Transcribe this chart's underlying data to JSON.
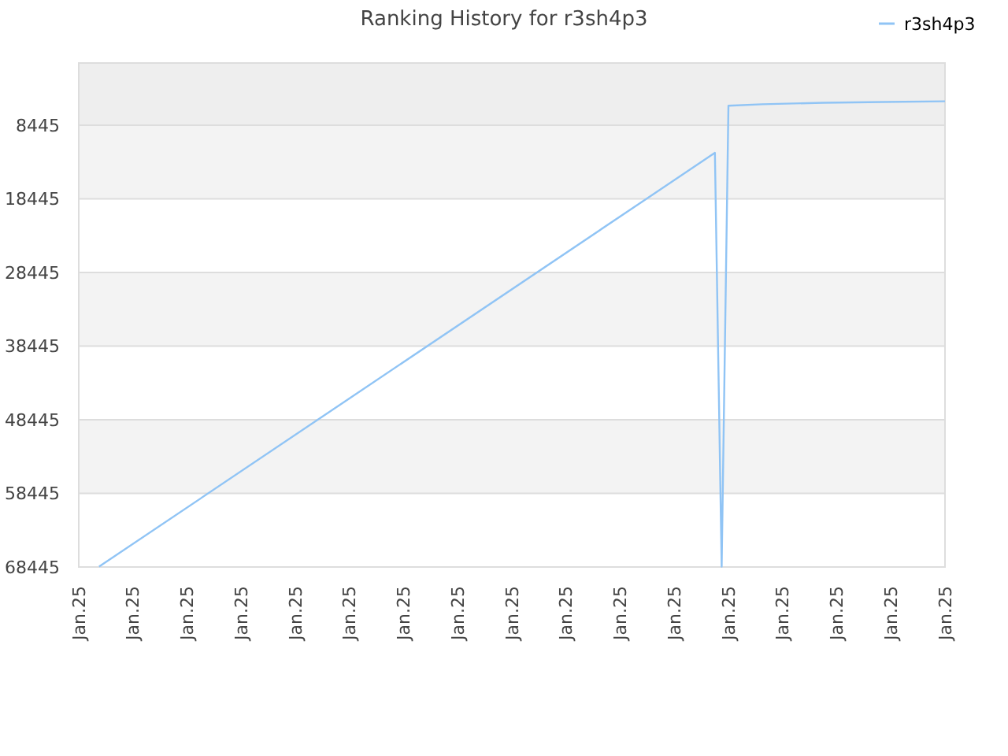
{
  "chart_data": {
    "type": "line",
    "title": "Ranking History for r3sh4p3",
    "categories": [
      "Jan.25",
      null,
      null,
      null,
      null,
      null,
      null,
      null,
      "Jan.25",
      null,
      null,
      null,
      null,
      null,
      null,
      null,
      "Jan.25",
      null,
      null,
      null,
      null,
      null,
      null,
      null,
      "Jan.25",
      null,
      null,
      null,
      null,
      null,
      null,
      null,
      "Jan.25",
      null,
      null,
      null,
      null,
      null,
      null,
      null,
      "Jan.25",
      null,
      null,
      null,
      null,
      null,
      null,
      null,
      "Jan.25",
      null,
      null,
      null,
      null,
      null,
      null,
      null,
      "Jan.25",
      null,
      null,
      null,
      null,
      null,
      null,
      null,
      "Jan.25",
      null,
      null,
      null,
      null,
      null,
      null,
      null,
      "Jan.25",
      null,
      null,
      null,
      null,
      null,
      null,
      null,
      "Jan.25",
      null,
      null,
      null,
      null,
      null,
      null,
      null,
      "Jan.25",
      null,
      null,
      null,
      null,
      null,
      null,
      null,
      "Jan.25",
      null,
      null,
      null,
      null,
      null,
      null,
      null,
      "Jan.25",
      null,
      null,
      null,
      null,
      null,
      null,
      null,
      "Jan.25",
      null,
      null,
      null,
      null,
      null,
      null,
      null,
      "Jan.25",
      null,
      null,
      null,
      null,
      null,
      null,
      null,
      "Jan.25"
    ],
    "ylim": [
      68445,
      1
    ],
    "yticks": [
      8445,
      18445,
      28445,
      38445,
      48445,
      58445,
      68445
    ],
    "series": [
      {
        "name": "r3sh4p3",
        "color": "#90c4f5",
        "values": [
          null,
          null,
          null,
          68400,
          null,
          null,
          null,
          null,
          null,
          null,
          null,
          null,
          null,
          null,
          null,
          null,
          null,
          null,
          null,
          null,
          null,
          null,
          null,
          null,
          null,
          null,
          null,
          null,
          null,
          null,
          null,
          null,
          null,
          null,
          null,
          null,
          null,
          null,
          null,
          null,
          null,
          null,
          null,
          null,
          null,
          null,
          null,
          null,
          null,
          null,
          null,
          null,
          null,
          null,
          null,
          null,
          null,
          null,
          null,
          null,
          null,
          null,
          null,
          null,
          null,
          null,
          null,
          null,
          null,
          null,
          null,
          null,
          null,
          null,
          null,
          null,
          null,
          null,
          null,
          null,
          null,
          null,
          null,
          null,
          null,
          null,
          null,
          null,
          null,
          null,
          null,
          null,
          null,
          null,
          12200,
          68400,
          5800,
          null,
          null,
          null,
          null,
          5600,
          null,
          null,
          null,
          null,
          null,
          null,
          null,
          null,
          5400,
          null,
          null,
          null,
          null,
          null,
          null,
          null,
          null,
          5300,
          null,
          null,
          null,
          null,
          null,
          null,
          null,
          null,
          5200
        ]
      }
    ],
    "bands": [
      {
        "axis": "y",
        "from": 1,
        "to": 8445,
        "color": "#eeeeee"
      },
      {
        "axis": "y",
        "from": 8445,
        "to": 18445,
        "color": "#f3f3f3"
      },
      {
        "axis": "y",
        "from": 28445,
        "to": 38445,
        "color": "#f3f3f3"
      },
      {
        "axis": "y",
        "from": 48445,
        "to": 58445,
        "color": "#f3f3f3"
      }
    ],
    "grid": "y",
    "legend": "top right",
    "marker": "none",
    "line_style": "solid"
  }
}
